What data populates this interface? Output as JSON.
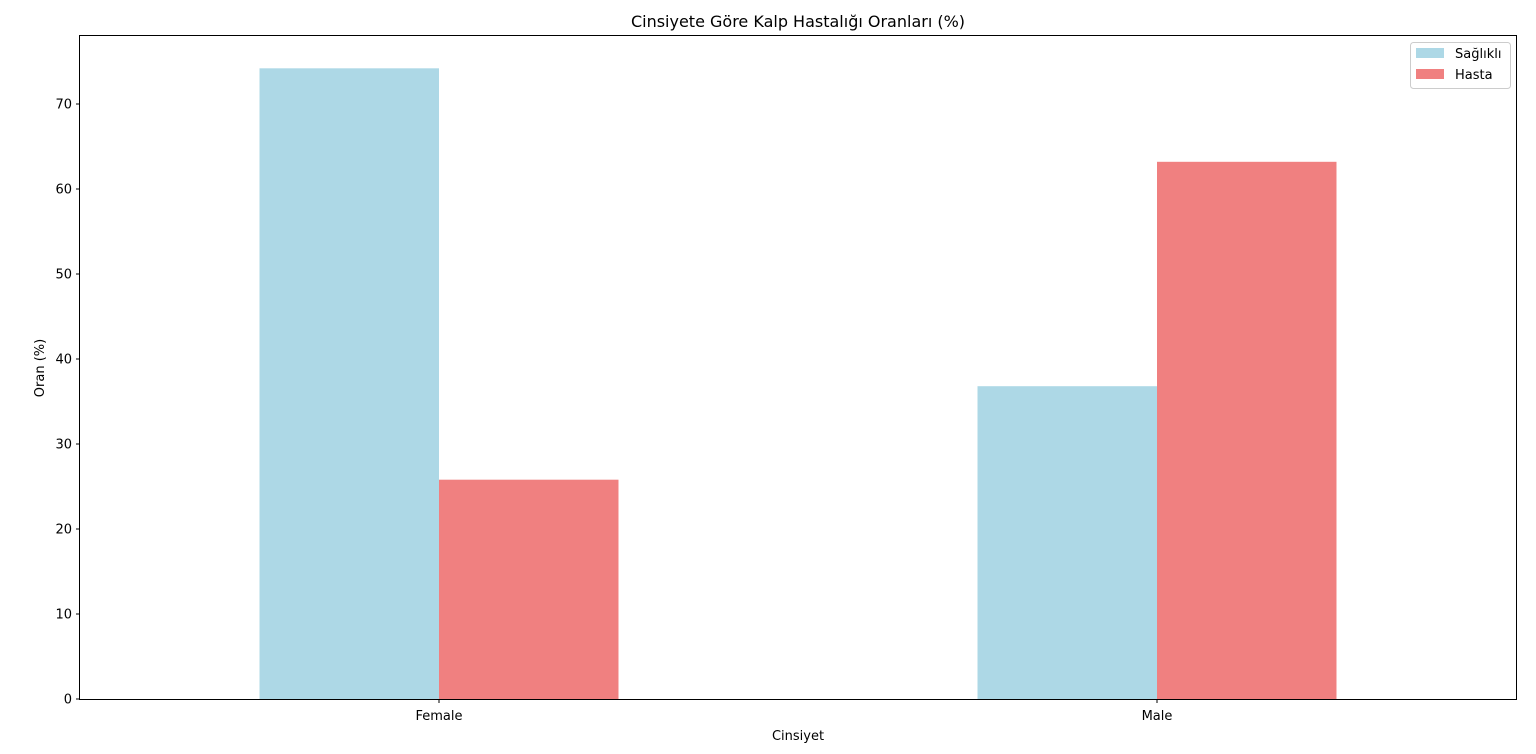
{
  "chart_data": {
    "type": "bar",
    "title": "Cinsiyete Göre Kalp Hastalığı Oranları (%)",
    "xlabel": "Cinsiyet",
    "ylabel": "Oran (%)",
    "categories": [
      "Female",
      "Male"
    ],
    "series": [
      {
        "name": "Sağlıklı",
        "color": "#add8e6",
        "values": [
          74.2,
          36.8
        ]
      },
      {
        "name": "Hasta",
        "color": "#f08080",
        "values": [
          25.8,
          63.2
        ]
      }
    ],
    "ylim": [
      0,
      78
    ],
    "yticks": [
      0,
      10,
      20,
      30,
      40,
      50,
      60,
      70
    ],
    "grid": false,
    "legend_position": "top-right"
  }
}
